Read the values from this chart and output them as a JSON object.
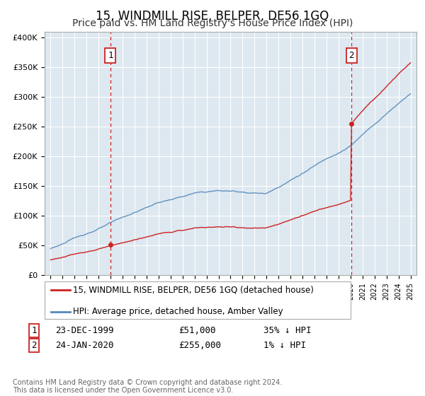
{
  "title": "15, WINDMILL RISE, BELPER, DE56 1GQ",
  "subtitle": "Price paid vs. HM Land Registry's House Price Index (HPI)",
  "footer": "Contains HM Land Registry data © Crown copyright and database right 2024.\nThis data is licensed under the Open Government Licence v3.0.",
  "legend_line1": "15, WINDMILL RISE, BELPER, DE56 1GQ (detached house)",
  "legend_line2": "HPI: Average price, detached house, Amber Valley",
  "sale1_date": 1999.98,
  "sale1_price": 51000,
  "sale1_label": "23-DEC-1999",
  "sale1_amount": "£51,000",
  "sale1_hpi": "35% ↓ HPI",
  "sale2_date": 2020.07,
  "sale2_price": 255000,
  "sale2_label": "24-JAN-2020",
  "sale2_amount": "£255,000",
  "sale2_hpi": "1% ↓ HPI",
  "ylim": [
    0,
    410000
  ],
  "xlim": [
    1994.5,
    2025.5
  ],
  "ylabel_ticks": [
    0,
    50000,
    100000,
    150000,
    200000,
    250000,
    300000,
    350000,
    400000
  ],
  "ylabel_labels": [
    "£0",
    "£50K",
    "£100K",
    "£150K",
    "£200K",
    "£250K",
    "£300K",
    "£350K",
    "£400K"
  ],
  "hpi_color": "#5588bb",
  "property_color": "#cc2222",
  "background_color": "#dde8f0",
  "grid_color": "#ffffff",
  "title_fontsize": 12,
  "subtitle_fontsize": 10,
  "tick_fontsize": 8
}
